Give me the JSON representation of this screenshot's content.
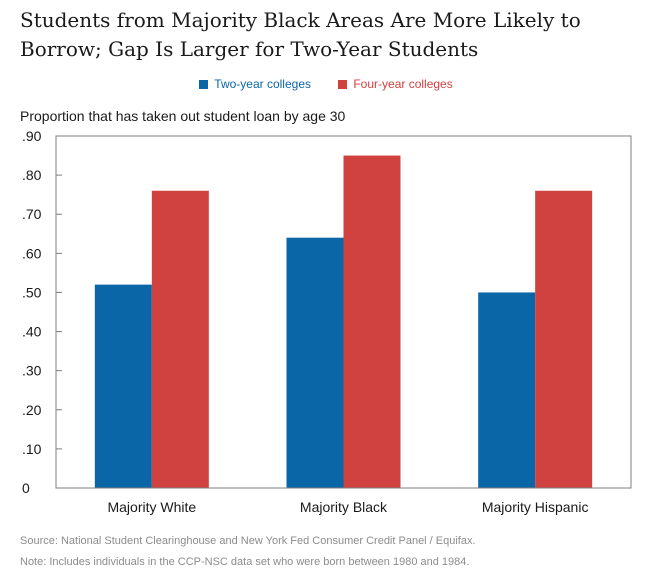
{
  "colors": {
    "two_year": "#0b66a8",
    "four_year": "#d0423f",
    "axis": "#7f7f7f"
  },
  "chart_data": {
    "type": "bar",
    "title": "Students from Majority Black Areas Are More Likely to Borrow; Gap Is Larger for Two-Year Students",
    "title_lines": [
      "Students from Majority Black Areas Are More Likely to",
      "Borrow; Gap Is Larger for Two-Year Students"
    ],
    "ylabel": "Proportion that has taken out student loan by age 30",
    "xlabel": "",
    "categories": [
      "Majority White",
      "Majority Black",
      "Majority Hispanic"
    ],
    "series": [
      {
        "name": "Two-year colleges",
        "values": [
          0.52,
          0.64,
          0.5
        ]
      },
      {
        "name": "Four-year colleges",
        "values": [
          0.76,
          0.85,
          0.76
        ]
      }
    ],
    "ylim": [
      0,
      0.9
    ],
    "yticks": [
      0,
      0.1,
      0.2,
      0.3,
      0.4,
      0.5,
      0.6,
      0.7,
      0.8,
      0.9
    ],
    "ytick_labels": [
      "0",
      ".10",
      ".20",
      ".30",
      ".40",
      ".50",
      ".60",
      ".70",
      ".80",
      ".90"
    ],
    "legend": "top-center",
    "grid": false
  },
  "footnotes": {
    "source": "Source: National Student Clearinghouse and New York Fed Consumer Credit Panel / Equifax.",
    "note": "Note: Includes individuals in the CCP-NSC data set who were born between 1980 and 1984."
  }
}
